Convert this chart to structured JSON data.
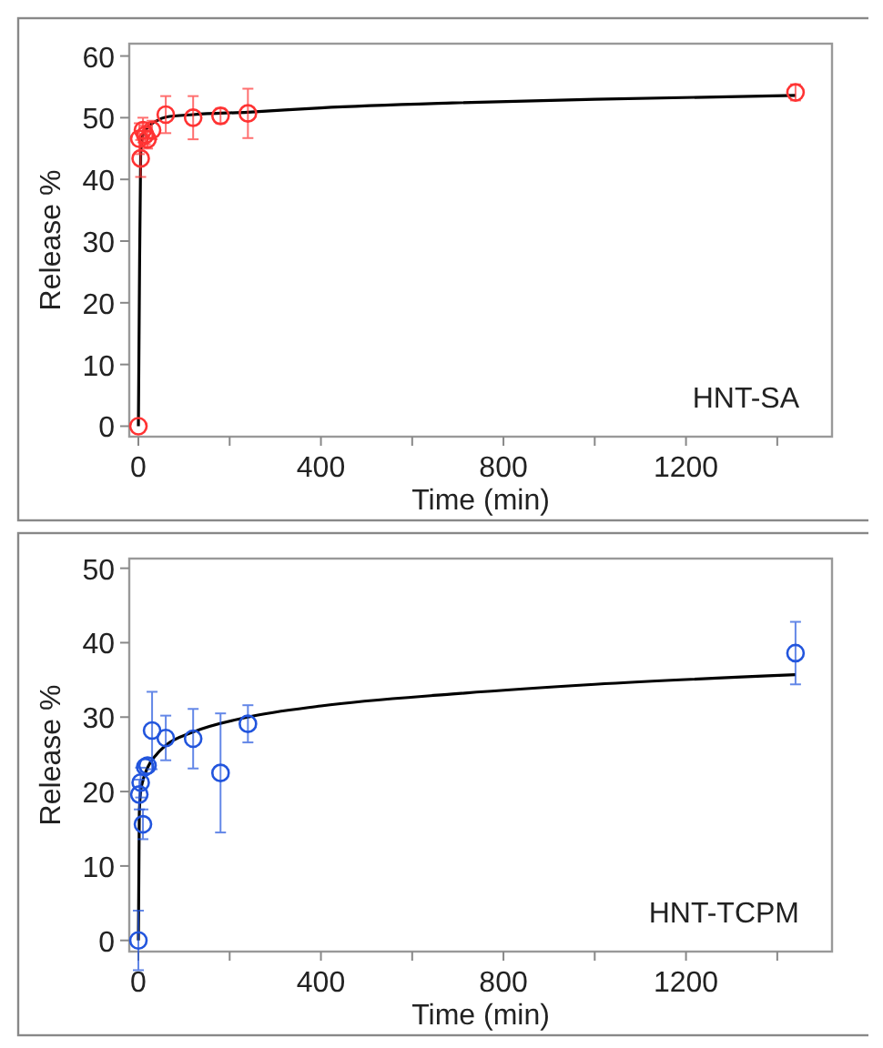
{
  "chart_data": [
    {
      "type": "scatter",
      "xlabel": "Time (min)",
      "ylabel": "Release %",
      "annotations": [
        "HNT-SA"
      ],
      "xlim": [
        -20,
        1520
      ],
      "xticks": [
        0,
        {
          "value": 200,
          "label": null
        },
        400,
        {
          "value": 600,
          "label": null
        },
        800,
        {
          "value": 1000,
          "label": null
        },
        1200,
        {
          "value": 1400,
          "label": null
        }
      ],
      "ylim": [
        -1.7,
        62
      ],
      "yticks": [
        0,
        10,
        20,
        30,
        40,
        50,
        60
      ],
      "grid": false,
      "series": [
        {
          "marker": "circle",
          "color": "#ff3333",
          "x": [
            0,
            2,
            5,
            10,
            15,
            20,
            30,
            60,
            120,
            180,
            240,
            1440
          ],
          "values": [
            0,
            46.6,
            43.4,
            48,
            47.2,
            46.5,
            48,
            50.5,
            50,
            50.3,
            50.7,
            54.1
          ],
          "errors": [
            null,
            2.5,
            3,
            2,
            1.5,
            1.5,
            1.5,
            3,
            3.5,
            1.2,
            4,
            1.3
          ]
        },
        {
          "type": "line",
          "color": "#000000",
          "x": [
            0,
            2,
            5,
            8,
            10,
            20,
            40,
            60,
            120,
            240,
            400,
            688,
            1000,
            1440
          ],
          "values": [
            0,
            20,
            44,
            46.5,
            47.2,
            48.4,
            49.5,
            50.1,
            50.5,
            50.9,
            51.6,
            52.4,
            53,
            53.6
          ]
        }
      ]
    },
    {
      "type": "scatter",
      "xlabel": "Time (min)",
      "ylabel": "Release %",
      "annotations": [
        "HNT-TCPM"
      ],
      "xlim": [
        -20,
        1520
      ],
      "xticks": [
        0,
        {
          "value": 200,
          "label": null
        },
        400,
        {
          "value": 600,
          "label": null
        },
        800,
        {
          "value": 1000,
          "label": null
        },
        1200,
        {
          "value": 1400,
          "label": null
        }
      ],
      "ylim": [
        -1.5,
        51.3
      ],
      "yticks": [
        0,
        10,
        20,
        30,
        40,
        50
      ],
      "grid": false,
      "series": [
        {
          "marker": "circle",
          "color": "#2255dd",
          "x": [
            0,
            2,
            5,
            10,
            15,
            20,
            30,
            60,
            120,
            180,
            240,
            1440
          ],
          "values": [
            0,
            19.6,
            21.2,
            15.6,
            23.3,
            23.5,
            28.2,
            27.2,
            27.1,
            22.5,
            29.1,
            38.6
          ],
          "errors": [
            4,
            2,
            2,
            2,
            null,
            null,
            5.2,
            3,
            4,
            8,
            2.5,
            4.2
          ]
        },
        {
          "type": "line",
          "color": "#000000",
          "x": [
            0,
            2,
            5,
            10,
            20,
            40,
            60,
            120,
            240,
            400,
            688,
            1000,
            1440
          ],
          "values": [
            0,
            17,
            20,
            21.5,
            23.2,
            25,
            26.2,
            28,
            30,
            31.5,
            33.1,
            34.4,
            35.7
          ]
        }
      ]
    }
  ]
}
